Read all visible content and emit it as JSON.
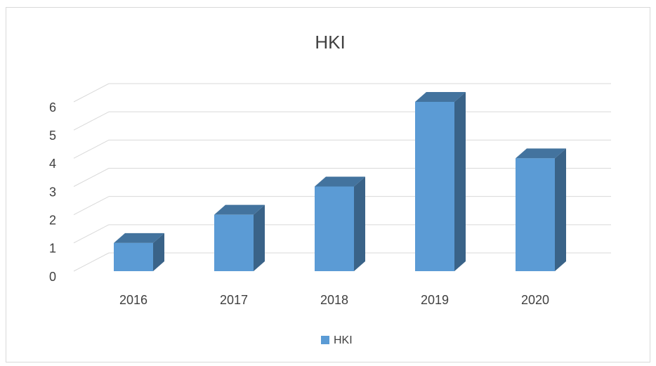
{
  "chart_data": {
    "type": "bar3d",
    "title": "HKI",
    "categories": [
      "2016",
      "2017",
      "2018",
      "2019",
      "2020"
    ],
    "series": [
      {
        "name": "HKI",
        "color": "#5b9bd5",
        "values": [
          1,
          2,
          3,
          6,
          4
        ]
      }
    ],
    "ylim": [
      0,
      6
    ],
    "yticks": [
      0,
      1,
      2,
      3,
      4,
      5,
      6
    ],
    "grid": true,
    "legend": "bottom"
  }
}
